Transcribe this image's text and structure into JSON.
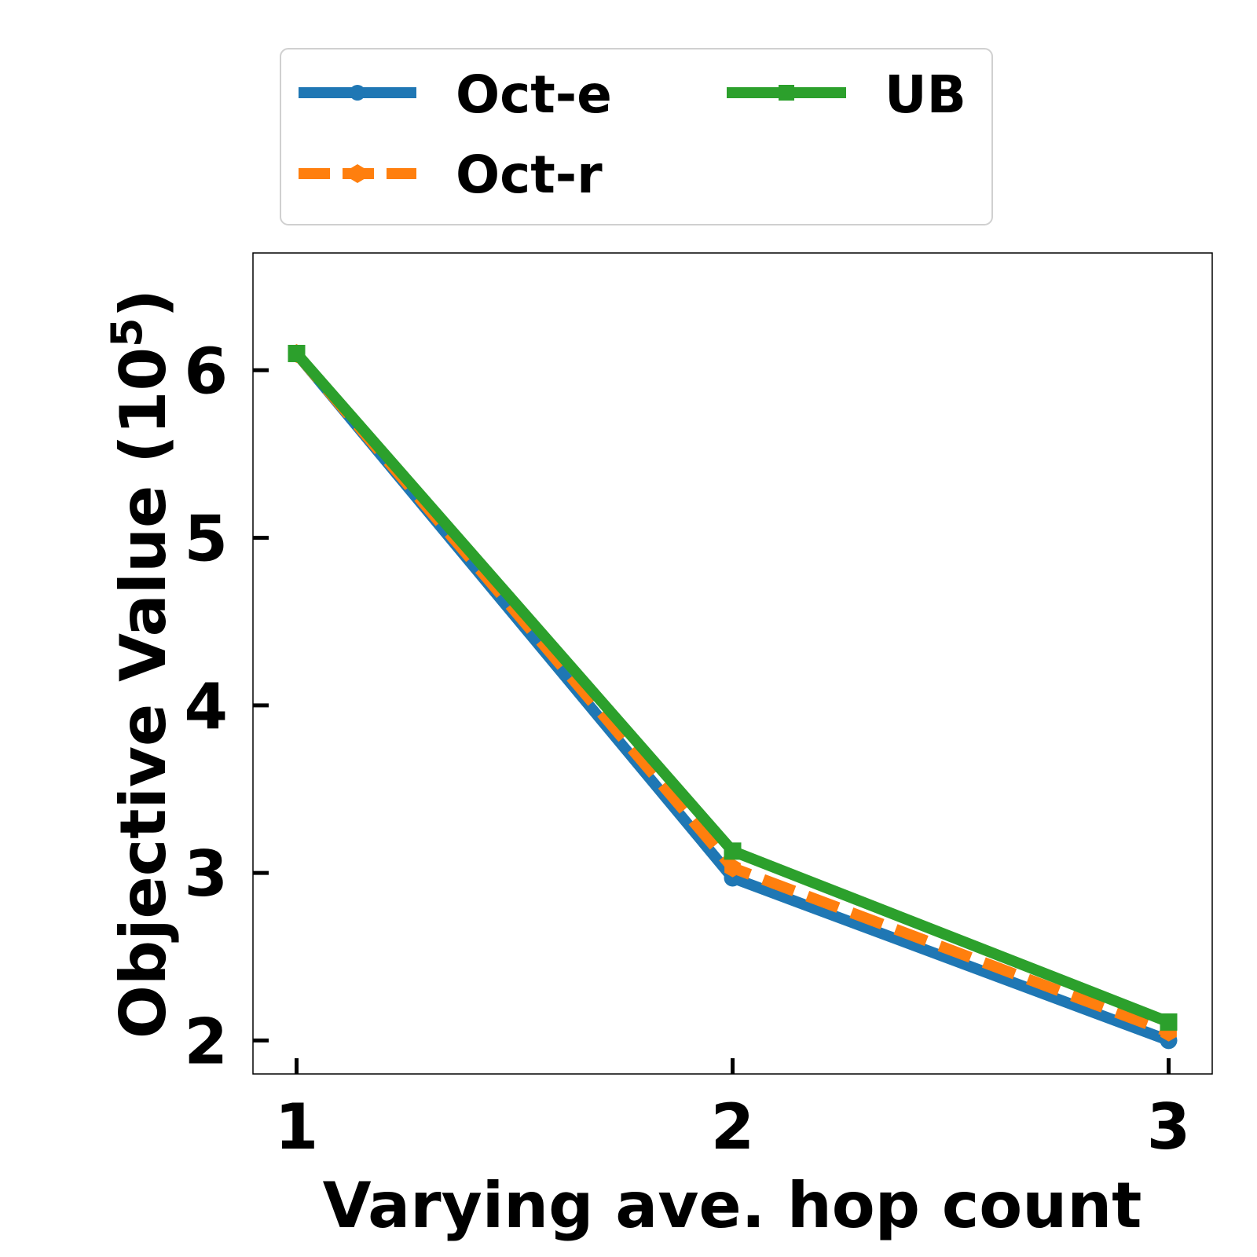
{
  "chart_data": {
    "type": "line",
    "x": [
      1,
      2,
      3
    ],
    "xticks": [
      "1",
      "2",
      "3"
    ],
    "yticks": [
      "2",
      "3",
      "4",
      "5",
      "6"
    ],
    "ytick_values": [
      2,
      3,
      4,
      5,
      6
    ],
    "xlabel": "Varying ave. hop count",
    "ylabel_main": "Objective Value (10",
    "ylabel_exp": "5",
    "ylabel_close": ")",
    "xlim": [
      0.9,
      3.1
    ],
    "ylim": [
      1.8,
      6.7
    ],
    "grid": false,
    "legend_position": "top",
    "series": [
      {
        "name": "Oct-e",
        "values": [
          6.1,
          2.97,
          2.0
        ],
        "color": "#1f77b4",
        "dash": "solid",
        "marker": "circle"
      },
      {
        "name": "Oct-r",
        "values": [
          6.1,
          3.03,
          2.05
        ],
        "color": "#ff7f0e",
        "dash": "dashed",
        "marker": "hexagon"
      },
      {
        "name": "UB",
        "values": [
          6.1,
          3.13,
          2.11
        ],
        "color": "#2ca02c",
        "dash": "solid",
        "marker": "square"
      }
    ]
  }
}
